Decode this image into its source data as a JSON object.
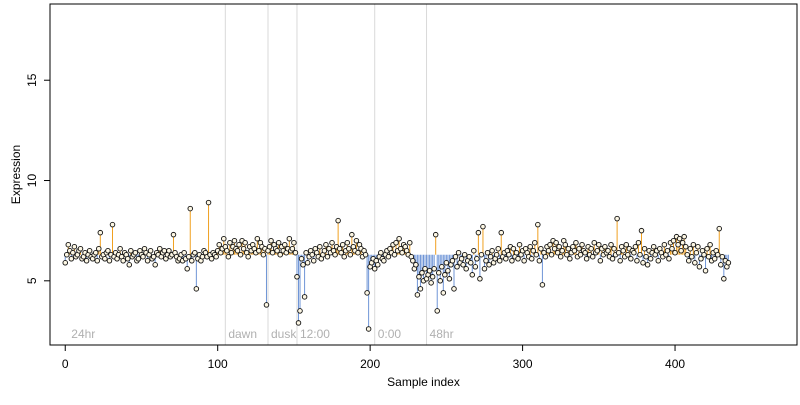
{
  "chart_data": {
    "type": "scatter",
    "title": "",
    "xlabel": "Sample index",
    "ylabel": "Expression",
    "xlim": [
      -10,
      480
    ],
    "ylim": [
      1.8,
      18.8
    ],
    "xticks": [
      0,
      100,
      200,
      300,
      400
    ],
    "yticks": [
      5,
      10,
      15
    ],
    "baseline": 6.3,
    "grid": false,
    "colors": {
      "above": "#f0a020",
      "below": "#6f95d6",
      "point_fill": "#fdf7e4",
      "point_stroke": "#111111",
      "divider": "#d9d9d9",
      "annotation": "#b0b0b0"
    },
    "annotations": [
      {
        "x": 2,
        "label": "24hr"
      },
      {
        "x": 105,
        "label": "dawn"
      },
      {
        "x": 133,
        "label": "dusk"
      },
      {
        "x": 152,
        "label": "12:00"
      },
      {
        "x": 203,
        "label": "0:00"
      },
      {
        "x": 237,
        "label": "48hr"
      }
    ],
    "dividers": [
      105,
      133,
      152,
      203,
      237
    ],
    "series": [
      {
        "values": [
          5.9,
          6.3,
          6.8,
          6.5,
          6.1,
          6.4,
          6.7,
          6.2,
          6.3,
          6.5,
          6.6,
          6.1,
          6.2,
          6.4,
          6.0,
          6.3,
          6.5,
          6.2,
          6.1,
          6.3,
          6.4,
          6.0,
          6.6,
          7.4,
          6.2,
          6.3,
          6.1,
          6.4,
          6.5,
          6.0,
          6.3,
          7.8,
          6.2,
          6.4,
          6.1,
          6.3,
          6.6,
          6.2,
          6.0,
          6.4,
          6.3,
          6.1,
          5.8,
          6.5,
          6.2,
          6.3,
          6.4,
          6.0,
          6.1,
          6.5,
          6.3,
          6.2,
          6.6,
          6.4,
          6.0,
          6.3,
          6.5,
          6.1,
          6.2,
          5.8,
          6.4,
          6.3,
          6.6,
          6.2,
          6.4,
          6.5,
          6.1,
          6.3,
          6.5,
          6.2,
          6.3,
          7.3,
          6.4,
          6.2,
          6.0,
          6.1,
          6.3,
          6.0,
          6.4,
          6.1,
          5.6,
          6.2,
          8.6,
          6.0,
          6.3,
          6.4,
          4.6,
          6.1,
          6.3,
          6.0,
          6.2,
          6.5,
          6.4,
          6.2,
          8.9,
          6.3,
          6.1,
          6.4,
          6.3,
          6.2,
          6.5,
          6.8,
          6.4,
          6.6,
          7.1,
          6.7,
          6.5,
          6.2,
          6.9,
          6.4,
          6.7,
          7.0,
          6.6,
          6.5,
          6.8,
          6.3,
          7.0,
          6.6,
          6.9,
          6.4,
          6.2,
          6.7,
          6.5,
          6.8,
          6.6,
          6.4,
          7.1,
          6.5,
          6.9,
          6.7,
          6.3,
          6.6,
          3.8,
          6.5,
          6.7,
          7.0,
          6.4,
          6.8,
          6.6,
          6.5,
          6.9,
          6.3,
          6.7,
          6.5,
          6.8,
          6.4,
          6.6,
          7.1,
          6.5,
          6.6,
          6.9,
          6.4,
          5.2,
          2.9,
          3.5,
          6.1,
          5.8,
          4.2,
          6.4,
          5.9,
          6.2,
          6.5,
          6.3,
          6.0,
          6.6,
          6.4,
          6.2,
          6.7,
          6.1,
          6.3,
          6.5,
          6.8,
          6.2,
          6.6,
          6.4,
          6.9,
          6.5,
          6.3,
          6.7,
          8.0,
          6.6,
          6.4,
          6.8,
          6.2,
          6.5,
          6.9,
          6.6,
          6.3,
          7.3,
          6.7,
          6.5,
          7.0,
          6.4,
          6.8,
          6.6,
          6.2,
          6.5,
          6.3,
          4.4,
          2.6,
          5.7,
          5.9,
          6.1,
          5.6,
          6.0,
          5.8,
          6.2,
          6.4,
          6.1,
          6.0,
          6.3,
          6.5,
          6.2,
          6.6,
          6.4,
          6.8,
          6.3,
          6.9,
          6.5,
          7.1,
          6.6,
          6.4,
          6.8,
          6.7,
          6.5,
          6.3,
          6.9,
          6.2,
          6.0,
          5.6,
          5.8,
          4.3,
          5.2,
          4.6,
          5.4,
          5.0,
          5.6,
          5.1,
          5.3,
          5.5,
          4.9,
          5.2,
          5.6,
          7.3,
          3.5,
          5.4,
          5.0,
          5.7,
          4.4,
          5.3,
          5.9,
          5.5,
          5.1,
          5.8,
          6.0,
          4.6,
          6.2,
          5.7,
          6.4,
          5.9,
          6.1,
          5.8,
          6.3,
          5.6,
          6.0,
          6.2,
          5.9,
          5.3,
          6.5,
          5.7,
          6.1,
          7.4,
          5.1,
          6.3,
          7.7,
          5.6,
          6.0,
          6.4,
          5.8,
          6.2,
          6.5,
          5.9,
          6.1,
          6.3,
          6.6,
          6.0,
          7.4,
          6.2,
          6.4,
          6.1,
          6.5,
          6.3,
          6.7,
          6.0,
          6.6,
          6.2,
          6.4,
          6.1,
          6.8,
          6.3,
          6.5,
          6.0,
          6.6,
          6.4,
          6.2,
          6.7,
          6.1,
          6.5,
          6.9,
          6.3,
          7.8,
          6.0,
          6.6,
          4.8,
          6.4,
          6.2,
          6.7,
          6.5,
          6.8,
          6.3,
          7.0,
          6.6,
          6.9,
          6.4,
          6.7,
          6.2,
          6.5,
          7.0,
          6.8,
          6.3,
          6.6,
          6.1,
          6.4,
          6.7,
          6.5,
          6.9,
          6.2,
          6.6,
          6.3,
          6.8,
          6.5,
          6.4,
          6.1,
          6.7,
          6.3,
          6.6,
          6.2,
          6.9,
          6.4,
          6.5,
          6.8,
          6.0,
          6.6,
          6.3,
          6.7,
          6.4,
          6.5,
          6.2,
          6.8,
          6.1,
          6.6,
          6.3,
          8.1,
          6.4,
          6.0,
          6.7,
          6.5,
          6.2,
          6.8,
          6.3,
          6.6,
          6.1,
          6.5,
          6.4,
          6.7,
          6.0,
          6.9,
          6.3,
          7.5,
          5.9,
          6.6,
          6.2,
          5.8,
          6.5,
          6.1,
          6.4,
          6.7,
          6.3,
          6.5,
          6.0,
          6.6,
          6.4,
          6.2,
          6.8,
          6.3,
          6.5,
          6.1,
          6.9,
          6.6,
          7.0,
          6.4,
          7.2,
          6.8,
          7.1,
          6.5,
          6.9,
          7.2,
          6.7,
          6.3,
          6.0,
          6.6,
          6.2,
          6.8,
          5.9,
          6.4,
          6.7,
          5.7,
          6.1,
          6.5,
          6.3,
          5.5,
          6.6,
          6.2,
          6.8,
          6.0,
          6.4,
          6.1,
          6.5,
          6.3,
          7.6,
          5.8,
          6.2,
          5.1,
          6.0,
          5.7,
          5.9
        ]
      }
    ]
  }
}
